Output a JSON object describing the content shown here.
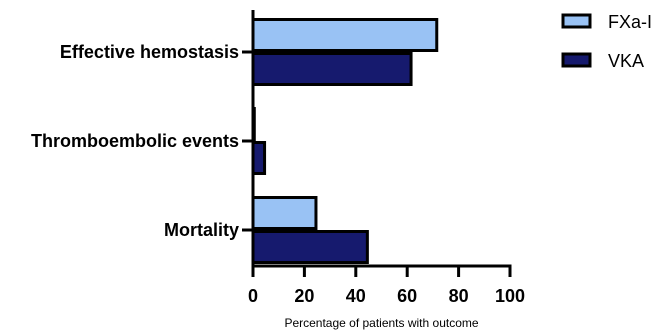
{
  "chart_data": {
    "type": "bar",
    "orientation": "horizontal",
    "categories": [
      "Effective hemostasis",
      "Thromboembolic events",
      "Mortality"
    ],
    "series": [
      {
        "name": "FXa-I",
        "values": [
          71.5,
          0.5,
          24.5
        ],
        "color": "#99c2f4"
      },
      {
        "name": "VKA",
        "values": [
          61.5,
          4.5,
          44.5
        ],
        "color": "#161a6e"
      }
    ],
    "xlabel": "Percentage of patients with outcome",
    "ylabel": "",
    "xlim": [
      0,
      100
    ],
    "xticks": [
      0,
      20,
      40,
      60,
      80,
      100
    ],
    "grid": false,
    "legend": "top-right"
  }
}
